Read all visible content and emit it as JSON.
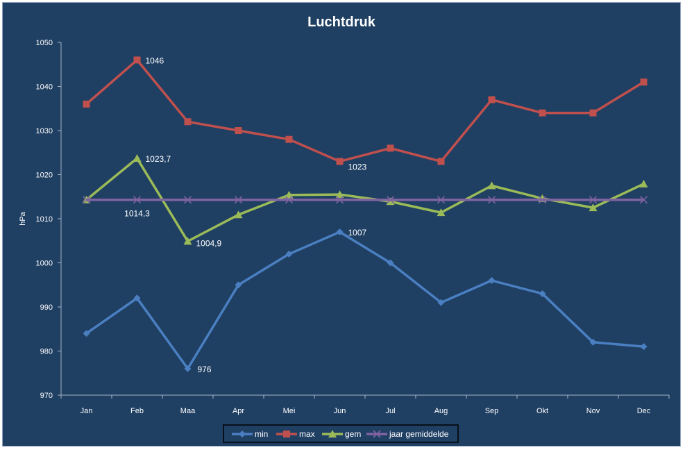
{
  "chart_data": {
    "type": "line",
    "title": "Luchtdruk",
    "xlabel": "",
    "ylabel": "hPa",
    "ylim": [
      970,
      1050
    ],
    "yticks": [
      970,
      980,
      990,
      1000,
      1010,
      1020,
      1030,
      1040,
      1050
    ],
    "grid": false,
    "legend_position": "bottom",
    "categories": [
      "Jan",
      "Feb",
      "Maa",
      "Apr",
      "Mei",
      "Jun",
      "Jul",
      "Aug",
      "Sep",
      "Okt",
      "Nov",
      "Dec"
    ],
    "series": [
      {
        "name": "min",
        "color": "#4a7fc1",
        "marker": "diamond",
        "values": [
          984,
          992,
          976,
          995,
          1002,
          1007,
          1000,
          991,
          996,
          993,
          982,
          981
        ]
      },
      {
        "name": "max",
        "color": "#c0504d",
        "marker": "square",
        "values": [
          1036,
          1046,
          1032,
          1030,
          1028,
          1023,
          1026,
          1023,
          1037,
          1034,
          1034,
          1041
        ]
      },
      {
        "name": "gem",
        "color": "#9bbb59",
        "marker": "triangle",
        "values": [
          1014.3,
          1023.7,
          1004.9,
          1010.9,
          1015.4,
          1015.5,
          1013.9,
          1011.4,
          1017.5,
          1014.6,
          1012.5,
          1017.9
        ]
      },
      {
        "name": "jaar gemiddelde",
        "color": "#8064a2",
        "marker": "x",
        "values": [
          1014.3,
          1014.3,
          1014.3,
          1014.3,
          1014.3,
          1014.3,
          1014.3,
          1014.3,
          1014.3,
          1014.3,
          1014.3,
          1014.3
        ]
      }
    ],
    "annotations": [
      {
        "series": "max",
        "index": 1,
        "text": "1046"
      },
      {
        "series": "max",
        "index": 5,
        "text": "1023"
      },
      {
        "series": "gem",
        "index": 1,
        "text": "1023,7"
      },
      {
        "series": "gem",
        "index": 2,
        "text": "1004,9"
      },
      {
        "series": "jaar gemiddelde",
        "index": 1,
        "text": "1014,3"
      },
      {
        "series": "min",
        "index": 2,
        "text": "976"
      },
      {
        "series": "min",
        "index": 5,
        "text": "1007"
      }
    ],
    "colors": {
      "background": "#1f3f63",
      "axis": "#a6b4c4",
      "text": "#ffffff"
    }
  }
}
